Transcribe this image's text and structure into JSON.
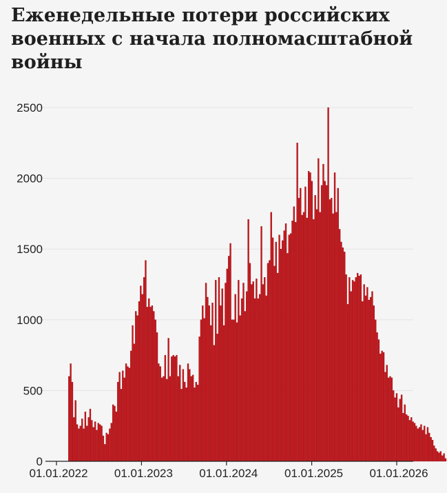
{
  "title": "Еженедельные потери российских военных с начала полномасштабной войны",
  "colors": {
    "bar": "#c8141a",
    "bar_edge": "#8a0d10",
    "grid": "#e4e4e4",
    "axis": "#222222",
    "text": "#222222",
    "background": "#f5f5f5"
  },
  "chart_data": {
    "type": "bar",
    "title": "Еженедельные потери российских военных с начала полномасштабной войны",
    "xlabel": "",
    "ylabel": "",
    "ylim": [
      0,
      2500
    ],
    "xlim": [
      "2022-01-01",
      "2026-02-01"
    ],
    "yticks": [
      0,
      500,
      1000,
      1500,
      2000,
      2500
    ],
    "ytick_labels": [
      "0",
      "500",
      "1000",
      "1500",
      "2000",
      "2500"
    ],
    "xticks": [
      "2022-01-01",
      "2023-01-01",
      "2024-01-01",
      "2025-01-01",
      "2026-01-01"
    ],
    "xtick_labels": [
      "01.01.2022",
      "01.01.2023",
      "01.01.2024",
      "01.01.2025",
      "01.01.2026"
    ],
    "grid": true,
    "legend": "none",
    "first_week": "2022-02-21",
    "week_interval_days": 7,
    "values": [
      600,
      690,
      560,
      310,
      430,
      260,
      230,
      250,
      300,
      230,
      350,
      250,
      310,
      370,
      290,
      240,
      280,
      220,
      270,
      260,
      250,
      180,
      120,
      200,
      190,
      230,
      270,
      400,
      390,
      350,
      560,
      630,
      510,
      640,
      590,
      690,
      670,
      660,
      780,
      960,
      830,
      1060,
      1030,
      1130,
      1240,
      1180,
      1300,
      1420,
      1090,
      1150,
      1090,
      1100,
      1060,
      1000,
      910,
      690,
      670,
      590,
      600,
      750,
      580,
      870,
      600,
      740,
      750,
      740,
      750,
      600,
      680,
      510,
      650,
      560,
      520,
      690,
      650,
      600,
      610,
      520,
      560,
      540,
      880,
      1000,
      1100,
      1010,
      1260,
      1160,
      1100,
      960,
      1120,
      820,
      1280,
      900,
      1300,
      1100,
      1220,
      960,
      1260,
      1360,
      1450,
      1540,
      1000,
      1000,
      1180,
      980,
      1280,
      1030,
      1150,
      1260,
      1060,
      1200,
      1710,
      1400,
      1250,
      1270,
      1150,
      1290,
      1150,
      1180,
      1660,
      1250,
      1300,
      1170,
      1400,
      1420,
      1760,
      1580,
      1380,
      1550,
      1330,
      1600,
      1500,
      1560,
      1630,
      1680,
      1470,
      1600,
      1610,
      1700,
      1800,
      1690,
      2250,
      1860,
      1930,
      1740,
      1760,
      1940,
      1720,
      2050,
      2040,
      1980,
      1710,
      1880,
      1780,
      2140,
      1760,
      1950,
      2100,
      1980,
      1950,
      2500,
      1850,
      1860,
      1750,
      2040,
      1760,
      1930,
      1640,
      1550,
      1510,
      1480,
      1320,
      1110,
      1300,
      1200,
      1280,
      1270,
      1300,
      1330,
      1310,
      1320,
      1130,
      1250,
      1170,
      1230,
      1140,
      1160,
      1200,
      1100,
      1000,
      910,
      860,
      760,
      780,
      770,
      630,
      680,
      590,
      600,
      590,
      500,
      450,
      480,
      380,
      440,
      470,
      340,
      400,
      330,
      320,
      290,
      310,
      280,
      270,
      250,
      230,
      240,
      260,
      220,
      250,
      190,
      240,
      200,
      170,
      150,
      110,
      90,
      70,
      60,
      70,
      40,
      55,
      20
    ]
  }
}
